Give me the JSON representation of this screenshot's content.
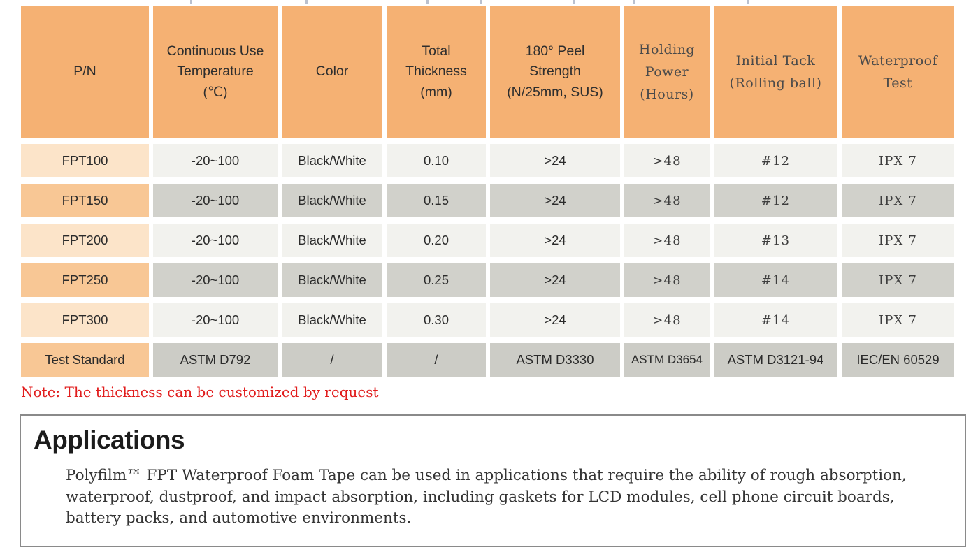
{
  "table": {
    "columns": [
      {
        "id": "pn",
        "label": "P/N"
      },
      {
        "id": "temp",
        "label": "Continuous Use\nTemperature\n(℃)"
      },
      {
        "id": "color",
        "label": "Color"
      },
      {
        "id": "thickness",
        "label": "Total\nThickness\n(mm)"
      },
      {
        "id": "peel",
        "label": "180° Peel\nStrength\n(N/25mm, SUS)"
      },
      {
        "id": "holding",
        "label": "Holding\nPower\n(Hours)"
      },
      {
        "id": "tack",
        "label": "Initial Tack\n(Rolling ball)"
      },
      {
        "id": "waterproof",
        "label": "Waterproof\nTest"
      }
    ],
    "rows": [
      {
        "pn": "FPT100",
        "temp": "-20~100",
        "color": "Black/White",
        "thickness": "0.10",
        "peel": ">24",
        "holding": ">48",
        "tack": "#12",
        "waterproof": "IPX 7"
      },
      {
        "pn": "FPT150",
        "temp": "-20~100",
        "color": "Black/White",
        "thickness": "0.15",
        "peel": ">24",
        "holding": ">48",
        "tack": "#12",
        "waterproof": "IPX 7"
      },
      {
        "pn": "FPT200",
        "temp": "-20~100",
        "color": "Black/White",
        "thickness": "0.20",
        "peel": ">24",
        "holding": ">48",
        "tack": "#13",
        "waterproof": "IPX 7"
      },
      {
        "pn": "FPT250",
        "temp": "-20~100",
        "color": "Black/White",
        "thickness": "0.25",
        "peel": ">24",
        "holding": ">48",
        "tack": "#14",
        "waterproof": "IPX 7"
      },
      {
        "pn": "FPT300",
        "temp": "-20~100",
        "color": "Black/White",
        "thickness": "0.30",
        "peel": ">24",
        "holding": ">48",
        "tack": "#14",
        "waterproof": "IPX 7"
      }
    ],
    "test_standard": {
      "pn": "Test Standard",
      "temp": "ASTM D792",
      "color": "/",
      "thickness": "/",
      "peel": "ASTM D3330",
      "holding": "ASTM D3654",
      "tack": "ASTM D3121-94",
      "waterproof": "IEC/EN 60529"
    }
  },
  "note": "Note: The thickness can be customized by request",
  "applications": {
    "title": "Applications",
    "body_lines": [
      "Polyfilm™ FPT Waterproof Foam Tape can be used in applications that require the ability of rough absorption,",
      "waterproof, dustproof, and impact absorption, including gaskets for LCD modules, cell phone circuit boards,",
      "battery packs, and automotive environments."
    ]
  },
  "colors": {
    "header_bg": "#f5b173",
    "row_pn_light": "#fce4c9",
    "row_pn_dark": "#f8c795",
    "row_val_light": "#f2f2ee",
    "row_val_dark": "#d1d1cb",
    "test_row_val": "#ccccc6",
    "note_red": "#e11d1d",
    "box_border": "#8a8a8a"
  }
}
